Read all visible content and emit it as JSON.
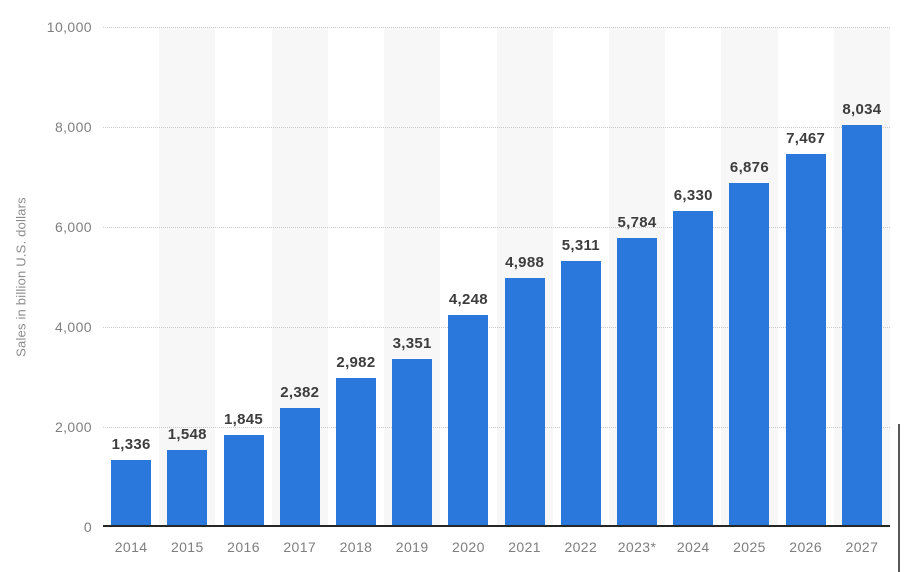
{
  "chart_data": {
    "type": "bar",
    "title": "",
    "xlabel": "",
    "ylabel": "Sales in billion U.S. dollars",
    "categories": [
      "2014",
      "2015",
      "2016",
      "2017",
      "2018",
      "2019",
      "2020",
      "2021",
      "2022",
      "2023*",
      "2024",
      "2025",
      "2026",
      "2027"
    ],
    "values": [
      1336,
      1548,
      1845,
      2382,
      2982,
      3351,
      4248,
      4988,
      5311,
      5784,
      6330,
      6876,
      7467,
      8034
    ],
    "value_labels": [
      "1,336",
      "1,548",
      "1,845",
      "2,382",
      "2,982",
      "3,351",
      "4,248",
      "4,988",
      "5,311",
      "5,784",
      "6,330",
      "6,876",
      "7,467",
      "8,034"
    ],
    "ylim": [
      0,
      10000
    ],
    "yticks": [
      0,
      2000,
      4000,
      6000,
      8000,
      10000
    ],
    "ytick_labels": [
      "0",
      "2,000",
      "4,000",
      "6,000",
      "8,000",
      "10,000"
    ],
    "grid": "horizontal-dotted",
    "legend_position": "none",
    "band_pattern": "alternating-columns"
  },
  "colors": {
    "bar": "#2b78dc",
    "band": "#f7f7f7",
    "gridline": "#c9c9c9",
    "axis_line": "#262626",
    "tick_label": "#7e7e7e",
    "value_label": "#3d3d3d",
    "axis_title": "#8c8c8c",
    "background": "#ffffff",
    "scrollbar_thumb": "#575757"
  }
}
